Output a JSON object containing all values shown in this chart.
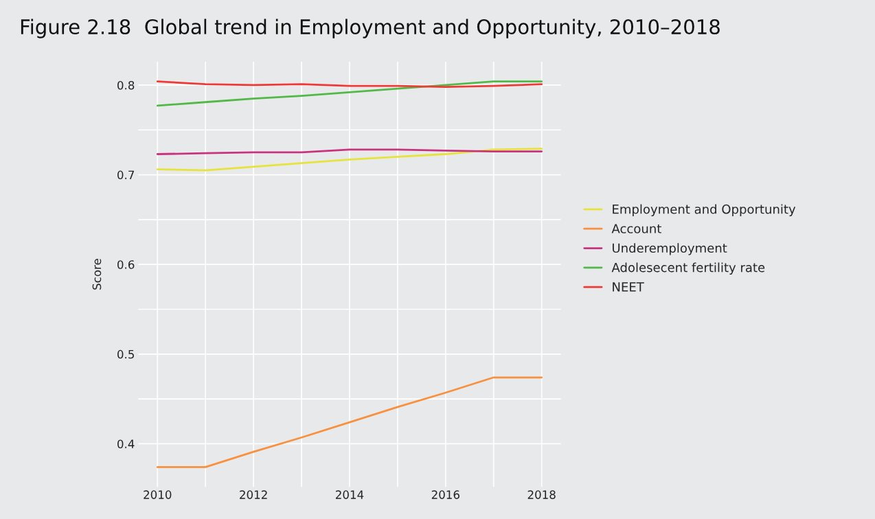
{
  "chart_data": {
    "type": "line",
    "title": "Figure 2.18  Global trend in Employment and Opportunity, 2010–2018",
    "ylabel": "Score",
    "x": [
      2010,
      2011,
      2012,
      2013,
      2014,
      2015,
      2016,
      2017,
      2018
    ],
    "series": [
      {
        "name": "Employment and Opportunity",
        "color": "#e6e33c",
        "values": [
          0.706,
          0.705,
          0.709,
          0.713,
          0.717,
          0.72,
          0.723,
          0.728,
          0.729
        ]
      },
      {
        "name": "Account",
        "color": "#f79140",
        "values": [
          0.374,
          0.374,
          0.391,
          0.407,
          0.424,
          0.441,
          0.457,
          0.474,
          0.474
        ]
      },
      {
        "name": "Underemployment",
        "color": "#c8337f",
        "values": [
          0.723,
          0.724,
          0.725,
          0.725,
          0.728,
          0.728,
          0.727,
          0.726,
          0.726
        ]
      },
      {
        "name": "Adolesecent fertility rate",
        "color": "#52b848",
        "values": [
          0.777,
          0.781,
          0.785,
          0.788,
          0.792,
          0.796,
          0.8,
          0.804,
          0.804
        ]
      },
      {
        "name": "NEET",
        "color": "#ee3a36",
        "values": [
          0.804,
          0.801,
          0.8,
          0.801,
          0.799,
          0.799,
          0.798,
          0.799,
          0.801
        ]
      }
    ],
    "xlim": [
      2009.6,
      2018.4
    ],
    "ylim": [
      0.352,
      0.826
    ],
    "xticks": [
      2010,
      {
        "value": 2011,
        "label": null
      },
      2012,
      {
        "value": 2013,
        "label": null
      },
      2014,
      {
        "value": 2015,
        "label": null
      },
      2016,
      {
        "value": 2017,
        "label": null
      },
      2018
    ],
    "yticks": [
      0.4,
      {
        "value": 0.45,
        "label": null
      },
      0.5,
      {
        "value": 0.55,
        "label": null
      },
      0.6,
      {
        "value": 0.65,
        "label": null
      },
      0.7,
      {
        "value": 0.75,
        "label": null
      },
      0.8
    ],
    "grid": true,
    "legend": "right",
    "marker": "none",
    "line_style": "solid"
  }
}
